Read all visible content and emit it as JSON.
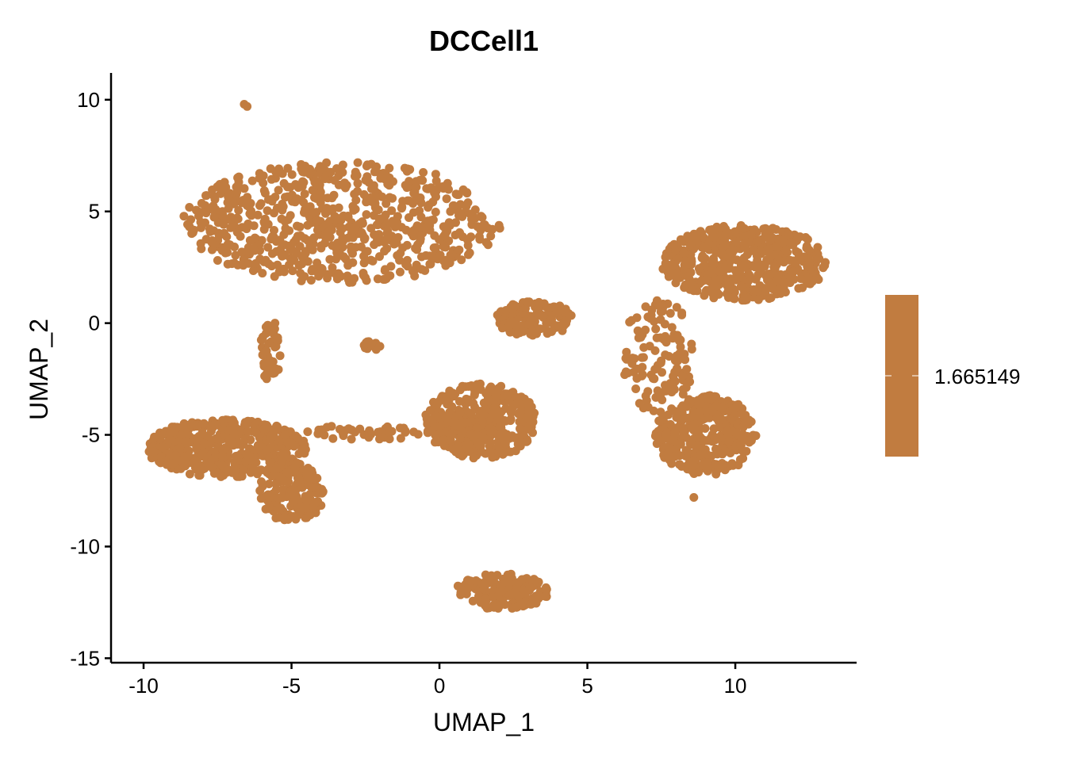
{
  "chart_data": {
    "type": "scatter",
    "title": "DCCell1",
    "xlabel": "UMAP_1",
    "ylabel": "UMAP_2",
    "xlim": [
      -11.1,
      14.1
    ],
    "ylim": [
      -15.2,
      11.2
    ],
    "xticks": [
      -10,
      -5,
      0,
      5,
      10
    ],
    "yticks": [
      -15,
      -10,
      -5,
      0,
      5,
      10
    ],
    "xtick_labels": [
      "-10",
      "-5",
      "0",
      "5",
      "10"
    ],
    "ytick_labels": [
      "-15",
      "-10",
      "-5",
      "0",
      "5",
      "10"
    ],
    "grid": false,
    "legend_placement": "right",
    "colorbar": {
      "labels": [
        "1.665149"
      ],
      "value": 1.665149,
      "color": "#C17C40"
    },
    "point_color": "#C17C40",
    "clusters": [
      {
        "name": "top-left",
        "cx": -3.3,
        "cy": 4.5,
        "rx": 5.4,
        "ry": 2.7,
        "n": 700
      },
      {
        "name": "left",
        "cx": -7.2,
        "cy": -5.6,
        "rx": 2.7,
        "ry": 1.3,
        "n": 450
      },
      {
        "name": "left-tail",
        "cx": -5.0,
        "cy": -7.6,
        "rx": 1.1,
        "ry": 1.4,
        "n": 160
      },
      {
        "name": "center",
        "cx": 1.4,
        "cy": -4.4,
        "rx": 1.9,
        "ry": 1.7,
        "n": 380
      },
      {
        "name": "right-top",
        "cx": 10.3,
        "cy": 2.7,
        "rx": 2.8,
        "ry": 1.7,
        "n": 520
      },
      {
        "name": "right-bottom",
        "cx": 9.0,
        "cy": -5.0,
        "rx": 1.7,
        "ry": 1.8,
        "n": 330
      },
      {
        "name": "mid-small",
        "cx": 3.2,
        "cy": 0.2,
        "rx": 1.3,
        "ry": 0.8,
        "n": 130
      },
      {
        "name": "bottom",
        "cx": 2.1,
        "cy": -12.0,
        "rx": 1.6,
        "ry": 0.8,
        "n": 200
      },
      {
        "name": "tiny",
        "cx": -2.3,
        "cy": -1.0,
        "rx": 0.3,
        "ry": 0.25,
        "n": 15
      },
      {
        "name": "bridge-left",
        "cx": -5.7,
        "cy": -1.3,
        "rx": 0.35,
        "ry": 1.5,
        "n": 40
      },
      {
        "name": "bridge-center",
        "cx": -2.5,
        "cy": -4.9,
        "rx": 2.0,
        "ry": 0.35,
        "n": 45
      },
      {
        "name": "bridge-right",
        "cx": 7.4,
        "cy": -1.5,
        "rx": 1.2,
        "ry": 2.7,
        "n": 120
      }
    ],
    "outliers": [
      [
        -6.6,
        9.8
      ],
      [
        -6.5,
        9.7
      ],
      [
        8.6,
        -7.8
      ]
    ]
  }
}
